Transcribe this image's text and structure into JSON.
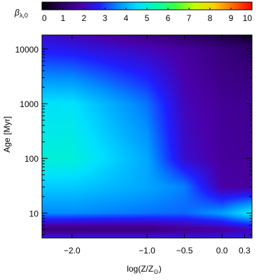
{
  "chart_data": {
    "type": "heatmap",
    "colorbar": {
      "label": "β",
      "label_sub": "λ,0",
      "min": 0,
      "max": 10,
      "ticks": [
        "0",
        "1",
        "2",
        "3",
        "4",
        "5",
        "6",
        "7",
        "8",
        "9",
        "10"
      ],
      "colormap": [
        "#000000",
        "#2a0060",
        "#4a00a8",
        "#1f1fff",
        "#0090ff",
        "#00e0ff",
        "#00ffb0",
        "#40ff40",
        "#c8ff00",
        "#ffd000",
        "#ff6a00",
        "#ff0000"
      ]
    },
    "xaxis": {
      "label_main": "log(Z/Z",
      "label_sub": "⊙",
      "label_close": ")",
      "range": [
        -2.4,
        0.4
      ],
      "ticks": [
        {
          "value": -2.0,
          "label": "−2.0"
        },
        {
          "value": -1.0,
          "label": "−1.0"
        },
        {
          "value": -0.5,
          "label": "−0.5"
        },
        {
          "value": 0.0,
          "label": "0.0"
        },
        {
          "value": 0.3,
          "label": "0.3"
        }
      ]
    },
    "yaxis": {
      "label_main": "Age",
      "label_unit": "[Myr]",
      "scale": "log",
      "range": [
        3.5,
        18000
      ],
      "ticks": [
        {
          "value": 10,
          "label": "10"
        },
        {
          "value": 100,
          "label": "100"
        },
        {
          "value": 1000,
          "label": "1000"
        },
        {
          "value": 10000,
          "label": "10000"
        }
      ]
    },
    "metallicity_samples": [
      -2.4,
      -2.0,
      -1.0,
      -0.5,
      0.0,
      0.4
    ],
    "age_samples": [
      3.5,
      5,
      10,
      30,
      100,
      1000,
      10000,
      18000
    ],
    "values": [
      [
        2.6,
        2.6,
        2.6,
        2.5,
        2.5,
        2.5
      ],
      [
        1.2,
        1.2,
        1.2,
        1.5,
        1.7,
        2.0
      ],
      [
        3.6,
        3.6,
        3.4,
        3.3,
        3.8,
        4.8
      ],
      [
        4.3,
        4.3,
        3.9,
        3.5,
        1.8,
        1.7
      ],
      [
        5.0,
        5.0,
        3.9,
        2.2,
        1.7,
        1.6
      ],
      [
        4.6,
        4.6,
        3.4,
        2.0,
        1.6,
        1.5
      ],
      [
        2.6,
        2.5,
        2.0,
        1.7,
        1.3,
        1.0
      ],
      [
        2.2,
        2.0,
        1.4,
        1.0,
        0.6,
        0.3
      ]
    ]
  }
}
